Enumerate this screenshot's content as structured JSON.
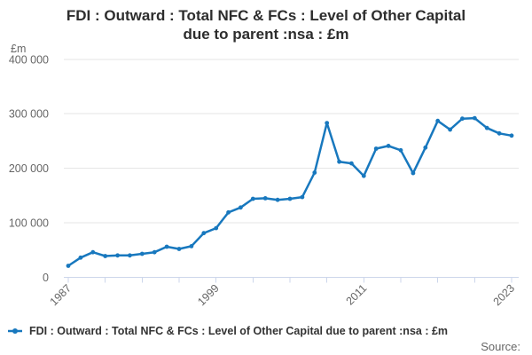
{
  "chart_data": {
    "type": "line",
    "title": "FDI : Outward : Total NFC & FCs : Level of Other Capital due to parent :nsa : £m",
    "title_line1": "FDI : Outward : Total NFC & FCs : Level of Other Capital",
    "title_line2": "due to parent :nsa : £m",
    "unit_label": "£m",
    "x": [
      1987,
      1988,
      1989,
      1990,
      1991,
      1992,
      1993,
      1994,
      1995,
      1996,
      1997,
      1998,
      1999,
      2000,
      2001,
      2002,
      2003,
      2004,
      2005,
      2006,
      2007,
      2008,
      2009,
      2010,
      2011,
      2012,
      2013,
      2014,
      2015,
      2016,
      2017,
      2018,
      2019,
      2020,
      2021,
      2022,
      2023
    ],
    "values": [
      21000,
      36000,
      46000,
      39000,
      40000,
      40000,
      43000,
      46000,
      56000,
      52000,
      57000,
      81000,
      90000,
      119000,
      128000,
      144000,
      145000,
      142000,
      144000,
      147000,
      192000,
      283000,
      212000,
      209000,
      186000,
      236000,
      241000,
      233000,
      191000,
      238000,
      287000,
      271000,
      291000,
      292000,
      274000,
      264000,
      260000
    ],
    "xlim": [
      1987,
      2023
    ],
    "ylim": [
      0,
      400000
    ],
    "y_ticks": [
      {
        "value": 0,
        "label": "0"
      },
      {
        "value": 100000,
        "label": "100 000"
      },
      {
        "value": 200000,
        "label": "200 000"
      },
      {
        "value": 300000,
        "label": "300 000"
      },
      {
        "value": 400000,
        "label": "400 000"
      }
    ],
    "x_tick_step_years": 3,
    "x_tick_labels": [
      {
        "year": 1987,
        "label": "1987"
      },
      {
        "year": 1999,
        "label": "1999"
      },
      {
        "year": 2011,
        "label": "2011"
      },
      {
        "year": 2023,
        "label": "2023"
      }
    ],
    "grid": "horizontal",
    "legend_position": "bottom-left",
    "colors": {
      "line": "#1878be",
      "grid": "#e6e6e6",
      "axis": "#ccd6eb",
      "tick_label": "#666666",
      "title": "#2d2d2d",
      "legend_text": "#333333",
      "source_text": "#666666"
    }
  },
  "legend": {
    "label": "FDI : Outward : Total NFC & FCs : Level of Other Capital due to parent :nsa : £m"
  },
  "source": {
    "label": "Source:"
  }
}
